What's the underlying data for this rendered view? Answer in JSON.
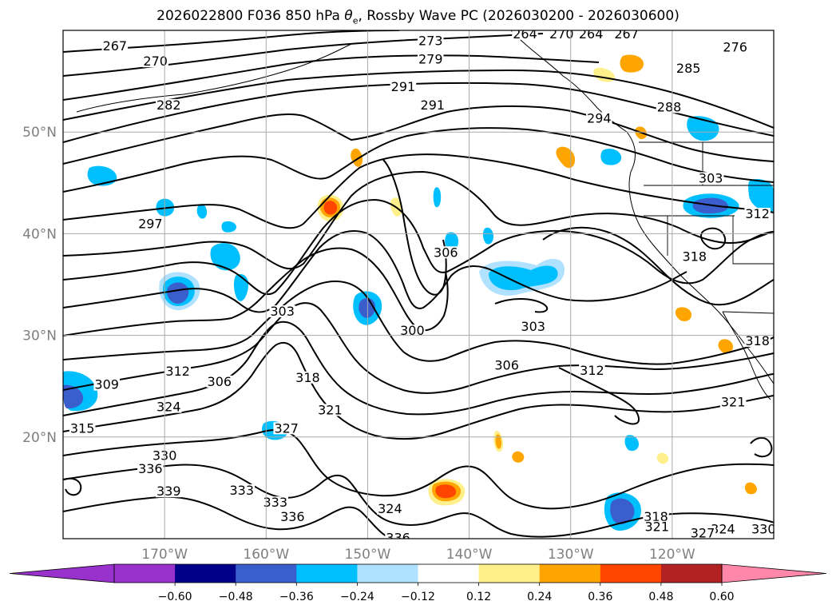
{
  "title": {
    "prefix": "2026022800 F036 850 hPa ",
    "theta_symbol": "θ",
    "theta_sub": "e",
    "suffix": ", Rossby Wave PC (2026030200 - 2026030600)"
  },
  "map": {
    "lon_range": [
      -180,
      -110
    ],
    "lat_range": [
      10,
      60
    ],
    "lat_gridlines": [
      20,
      30,
      40,
      50
    ],
    "lon_gridlines": [
      -170,
      -160,
      -150,
      -140,
      -130,
      -120
    ],
    "lat_labels": [
      "20°N",
      "30°N",
      "40°N",
      "50°N"
    ],
    "lon_labels": [
      "170°W",
      "160°W",
      "150°W",
      "140°W",
      "130°W",
      "120°W"
    ],
    "grid_color": "#a9a9a9",
    "contour_color": "#000000",
    "contour_labels": [
      {
        "text": "267",
        "lon": -174.9,
        "lat": 58.5
      },
      {
        "text": "270",
        "lon": -170.9,
        "lat": 57.0
      },
      {
        "text": "273",
        "lon": -143.8,
        "lat": 59.0
      },
      {
        "text": "279",
        "lon": -143.8,
        "lat": 57.2
      },
      {
        "text": "264",
        "lon": -134.5,
        "lat": 59.7
      },
      {
        "text": "270",
        "lon": -130.9,
        "lat": 59.7
      },
      {
        "text": "264",
        "lon": -128.0,
        "lat": 59.7
      },
      {
        "text": "267",
        "lon": -124.5,
        "lat": 59.7
      },
      {
        "text": "276",
        "lon": -113.8,
        "lat": 58.4
      },
      {
        "text": "285",
        "lon": -118.4,
        "lat": 56.3
      },
      {
        "text": "291",
        "lon": -146.5,
        "lat": 54.5
      },
      {
        "text": "291",
        "lon": -143.6,
        "lat": 52.7
      },
      {
        "text": "282",
        "lon": -169.6,
        "lat": 52.7
      },
      {
        "text": "288",
        "lon": -120.3,
        "lat": 52.5
      },
      {
        "text": "294",
        "lon": -127.2,
        "lat": 51.4
      },
      {
        "text": "303",
        "lon": -116.2,
        "lat": 45.5
      },
      {
        "text": "312",
        "lon": -111.6,
        "lat": 42.0
      },
      {
        "text": "297",
        "lon": -171.4,
        "lat": 41.0
      },
      {
        "text": "306",
        "lon": -142.3,
        "lat": 38.2
      },
      {
        "text": "318",
        "lon": -117.8,
        "lat": 37.8
      },
      {
        "text": "303",
        "lon": -158.4,
        "lat": 32.4
      },
      {
        "text": "300",
        "lon": -145.6,
        "lat": 30.5
      },
      {
        "text": "303",
        "lon": -133.7,
        "lat": 30.9
      },
      {
        "text": "318",
        "lon": -111.6,
        "lat": 29.5
      },
      {
        "text": "306",
        "lon": -136.3,
        "lat": 27.1
      },
      {
        "text": "312",
        "lon": -127.9,
        "lat": 26.6
      },
      {
        "text": "318",
        "lon": -155.9,
        "lat": 25.9
      },
      {
        "text": "312",
        "lon": -168.7,
        "lat": 26.5
      },
      {
        "text": "306",
        "lon": -164.6,
        "lat": 25.5
      },
      {
        "text": "309",
        "lon": -175.7,
        "lat": 25.2
      },
      {
        "text": "324",
        "lon": -169.6,
        "lat": 23.0
      },
      {
        "text": "321",
        "lon": -153.7,
        "lat": 22.7
      },
      {
        "text": "321",
        "lon": -114.0,
        "lat": 23.5
      },
      {
        "text": "315",
        "lon": -178.1,
        "lat": 20.9
      },
      {
        "text": "327",
        "lon": -158.0,
        "lat": 20.9
      },
      {
        "text": "330",
        "lon": -170.0,
        "lat": 18.2
      },
      {
        "text": "336",
        "lon": -171.4,
        "lat": 16.9
      },
      {
        "text": "339",
        "lon": -169.6,
        "lat": 14.7
      },
      {
        "text": "333",
        "lon": -162.4,
        "lat": 14.8
      },
      {
        "text": "333",
        "lon": -159.1,
        "lat": 13.6
      },
      {
        "text": "336",
        "lon": -157.4,
        "lat": 12.2
      },
      {
        "text": "324",
        "lon": -147.8,
        "lat": 13.0
      },
      {
        "text": "318",
        "lon": -121.6,
        "lat": 12.2
      },
      {
        "text": "321",
        "lon": -121.5,
        "lat": 11.2
      },
      {
        "text": "324",
        "lon": -115.0,
        "lat": 11.0
      },
      {
        "text": "330",
        "lon": -111.0,
        "lat": 11.0
      },
      {
        "text": "336",
        "lon": -147.0,
        "lat": 10.1
      },
      {
        "text": "327",
        "lon": -117.0,
        "lat": 10.6
      }
    ]
  },
  "colorbar": {
    "ticks": [
      "−0.60",
      "−0.48",
      "−0.36",
      "−0.24",
      "−0.12",
      "0.12",
      "0.24",
      "0.36",
      "0.48",
      "0.60"
    ],
    "colors": [
      "#9932cc",
      "#00008b",
      "#3a5fcd",
      "#00bfff",
      "#b0e2ff",
      "#ffffff",
      "#fff08c",
      "#ffa500",
      "#ff4500",
      "#b22222"
    ],
    "under_color": "#9932cc",
    "over_color": "#ff88aa"
  }
}
